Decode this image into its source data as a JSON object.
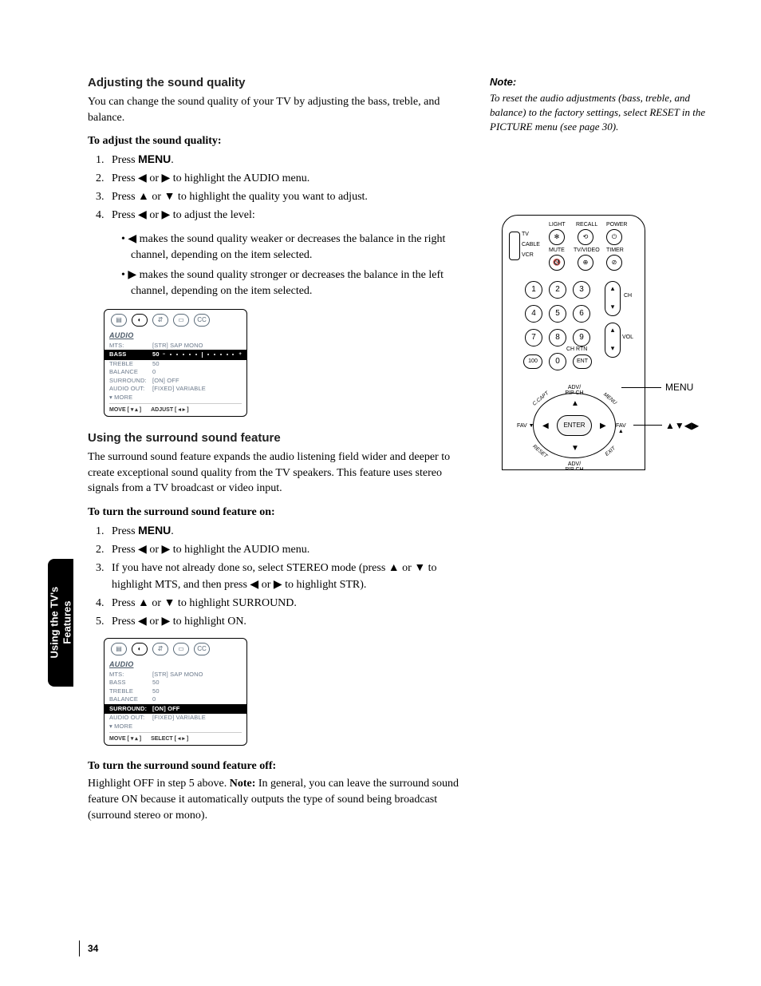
{
  "page_number": "34",
  "side_tab": "Using the TV's\nFeatures",
  "section1": {
    "heading": "Adjusting the sound quality",
    "intro": "You can change the sound quality of your TV by adjusting the bass, treble, and balance.",
    "lead": "To adjust the sound quality:",
    "steps": [
      {
        "pre": "Press ",
        "bold": "MENU",
        "post": "."
      },
      {
        "text": "Press ◀ or ▶ to highlight the AUDIO menu."
      },
      {
        "text": "Press ▲ or ▼ to highlight the quality you want to adjust."
      },
      {
        "text": "Press ◀ or ▶ to adjust the level:"
      }
    ],
    "bullets": [
      "◀ makes the sound quality weaker or decreases the balance in the right channel, depending on the item selected.",
      "▶ makes the sound quality stronger or decreases the balance in the left channel, depending on the item selected."
    ]
  },
  "section2": {
    "heading": "Using the surround sound feature",
    "intro": "The surround sound feature expands the audio listening field wider and deeper to create exceptional sound quality from the TV speakers. This feature uses stereo signals from a TV broadcast or video input.",
    "lead": "To turn the surround sound feature on:",
    "steps": [
      {
        "pre": "Press ",
        "bold": "MENU",
        "post": "."
      },
      {
        "text": "Press ◀ or ▶ to highlight the AUDIO menu."
      },
      {
        "text": "If you have not already done so, select STEREO mode (press ▲ or ▼ to highlight MTS, and then press ◀ or ▶ to highlight STR)."
      },
      {
        "text": "Press ▲ or ▼ to highlight SURROUND."
      },
      {
        "text": "Press ◀ or ▶ to highlight ON."
      }
    ],
    "lead2": "To turn the surround sound feature off:",
    "off_text_pre": "Highlight OFF in step 5 above. ",
    "off_text_bold": "Note:",
    "off_text_post": " In general, you can leave the surround sound feature ON because it automatically outputs the type of sound being broadcast (surround stereo or mono)."
  },
  "note": {
    "head": "Note:",
    "body": "To reset the audio adjustments (bass, treble, and balance) to the factory settings, select RESET in the PICTURE menu (see page 30)."
  },
  "osd1": {
    "title": "AUDIO",
    "rows": [
      {
        "lbl": "MTS:",
        "val": "[STR] SAP MONO",
        "hl": false
      },
      {
        "lbl": "BASS",
        "val": "50",
        "hl": true,
        "slider": true
      },
      {
        "lbl": "TREBLE",
        "val": "50",
        "hl": false
      },
      {
        "lbl": "BALANCE",
        "val": "0",
        "hl": false
      },
      {
        "lbl": "SURROUND:",
        "val": "[ON] OFF",
        "hl": false
      },
      {
        "lbl": "AUDIO OUT:",
        "val": "[FIXED] VARIABLE",
        "hl": false
      },
      {
        "lbl": "▾ MORE",
        "val": "",
        "hl": false
      }
    ],
    "foot_left": "MOVE [ ▾ ▴ ]",
    "foot_right": "ADJUST [ ◂  ▸ ]"
  },
  "osd2": {
    "title": "AUDIO",
    "rows": [
      {
        "lbl": "MTS:",
        "val": "[STR] SAP MONO",
        "hl": false
      },
      {
        "lbl": "BASS",
        "val": "50",
        "hl": false
      },
      {
        "lbl": "TREBLE",
        "val": "50",
        "hl": false
      },
      {
        "lbl": "BALANCE",
        "val": "0",
        "hl": false
      },
      {
        "lbl": "SURROUND:",
        "val": "[ON] OFF",
        "hl": true
      },
      {
        "lbl": "AUDIO OUT:",
        "val": "[FIXED] VARIABLE",
        "hl": false
      },
      {
        "lbl": "▾ MORE",
        "val": "",
        "hl": false
      }
    ],
    "foot_left": "MOVE [ ▾ ▴ ]",
    "foot_right": "SELECT [ ◂  ▸ ]"
  },
  "remote": {
    "top_labels": [
      "LIGHT",
      "RECALL",
      "POWER"
    ],
    "row2_labels": [
      "MUTE",
      "TV/VIDEO",
      "TIMER"
    ],
    "mode_labels": [
      "TV",
      "CABLE",
      "VCR"
    ],
    "numbers": [
      "1",
      "2",
      "3",
      "4",
      "5",
      "6",
      "7",
      "8",
      "9",
      "100",
      "0",
      "ENT"
    ],
    "ch_label": "CH",
    "vol_label": "VOL",
    "chrtn_label": "CH RTN",
    "dpad": {
      "center": "ENTER",
      "top": "ADV/\nPIP CH",
      "bottom": "ADV/\nPIP CH",
      "left": "FAV ▼",
      "right": "FAV ▲",
      "corners": [
        "C.CAPT",
        "MENU",
        "RESET",
        "EXIT"
      ]
    },
    "callouts": {
      "menu": "MENU",
      "arrows": "▲▼◀▶"
    }
  }
}
